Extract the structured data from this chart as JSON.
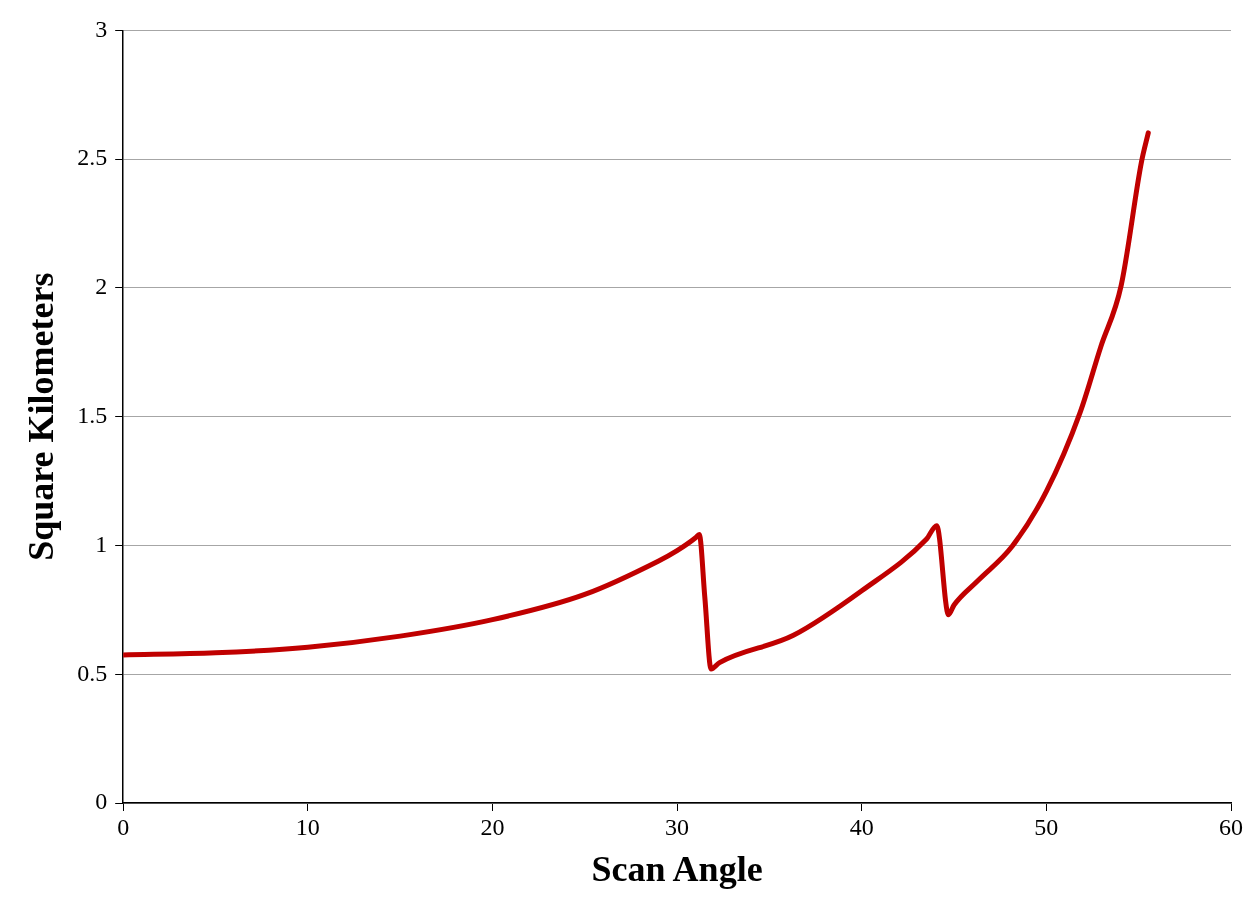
{
  "chart_data": {
    "type": "line",
    "xlabel": "Scan Angle",
    "ylabel": "Square Kilometers",
    "xlim": [
      0,
      60
    ],
    "xticks": [
      0,
      10,
      20,
      30,
      40,
      50,
      60
    ],
    "ylim": [
      0,
      3
    ],
    "yticks": [
      0,
      0.5,
      1,
      1.5,
      2,
      2.5,
      3
    ],
    "grid": "y",
    "legend": false,
    "marker": "none",
    "line_style": "solid",
    "series": [
      {
        "color": "#c00000",
        "x": [
          0,
          5,
          10,
          15,
          20,
          25,
          29,
          30,
          31,
          31.2,
          31.5,
          31.84,
          32.3,
          36.3,
          40,
          43.5,
          44.06,
          44.7,
          45,
          46.3,
          48.15,
          50,
          51.83,
          52.94,
          54.05,
          55.15,
          55.52
        ],
        "values": [
          0.575,
          0.583,
          0.605,
          0.648,
          0.712,
          0.81,
          0.94,
          0.98,
          1.03,
          1.043,
          0.8,
          0.52,
          0.545,
          0.651,
          0.824,
          1.024,
          1.077,
          0.731,
          0.769,
          0.864,
          0.997,
          1.21,
          1.517,
          1.77,
          2.009,
          2.489,
          2.602
        ]
      }
    ]
  }
}
